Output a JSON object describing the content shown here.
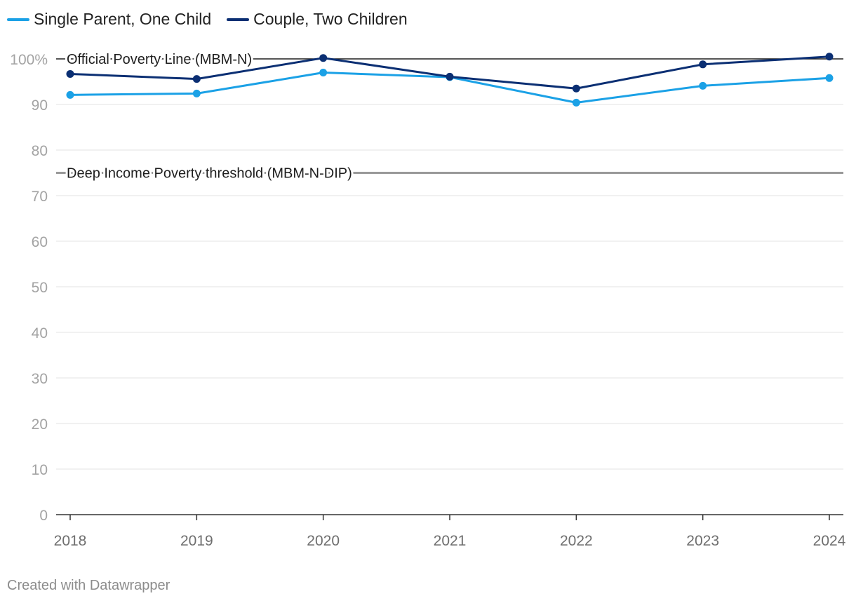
{
  "legend": [
    {
      "name": "Single Parent, One Child",
      "color": "#1ba1e6"
    },
    {
      "name": "Couple, Two Children",
      "color": "#0b2f73"
    }
  ],
  "footer": "Created with Datawrapper",
  "chart_data": {
    "type": "line",
    "x": [
      "2018",
      "2019",
      "2020",
      "2021",
      "2022",
      "2023",
      "2024"
    ],
    "series": [
      {
        "name": "Single Parent, One Child",
        "color": "#1ba1e6",
        "values": [
          92.1,
          92.4,
          97.0,
          96.0,
          90.4,
          94.1,
          95.8
        ]
      },
      {
        "name": "Couple, Two Children",
        "color": "#0b2f73",
        "values": [
          96.7,
          95.6,
          100.2,
          96.1,
          93.5,
          98.8,
          100.5
        ]
      }
    ],
    "yticks": [
      {
        "value": 0,
        "label": "0"
      },
      {
        "value": 10,
        "label": "10"
      },
      {
        "value": 20,
        "label": "20"
      },
      {
        "value": 30,
        "label": "30"
      },
      {
        "value": 40,
        "label": "40"
      },
      {
        "value": 50,
        "label": "50"
      },
      {
        "value": 60,
        "label": "60"
      },
      {
        "value": 70,
        "label": "70"
      },
      {
        "value": 80,
        "label": "80"
      },
      {
        "value": 90,
        "label": "90"
      },
      {
        "value": 100,
        "label": "100%"
      }
    ],
    "ylim": [
      0,
      100
    ],
    "reference_lines": [
      {
        "label": "Official Poverty Line (MBM-N)",
        "value": 100,
        "color": "#1e1e1e"
      },
      {
        "label": "Deep Income Poverty threshold (MBM-N-DIP)",
        "value": 75,
        "color": "#999999"
      }
    ],
    "grid": true,
    "legend_position": "top-left"
  }
}
